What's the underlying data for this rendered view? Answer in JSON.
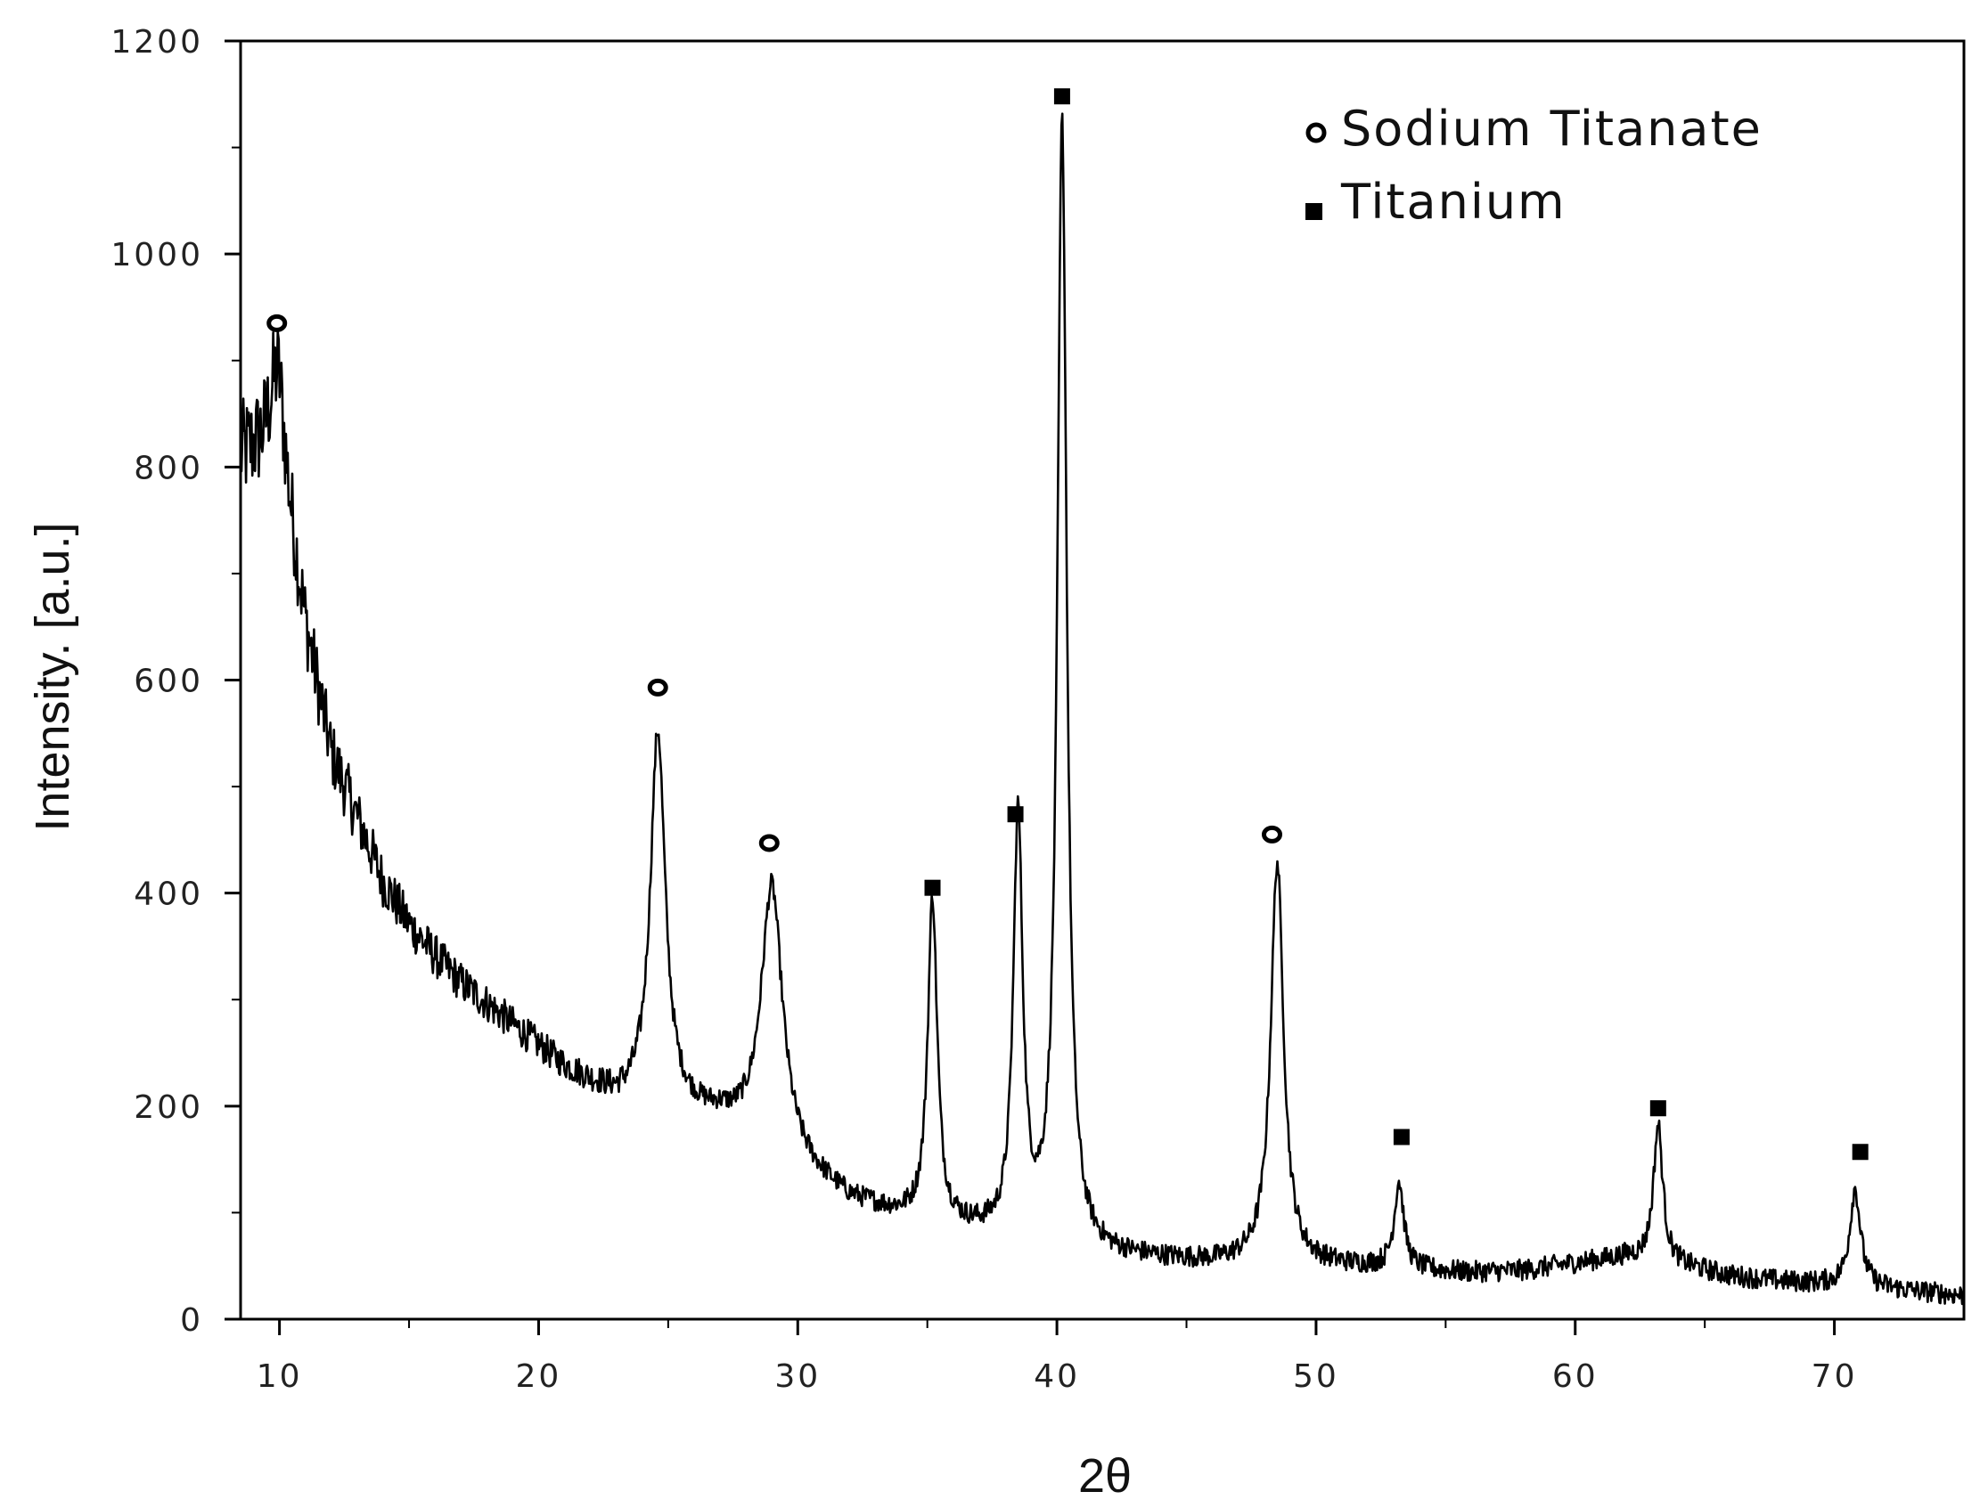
{
  "chart_data": {
    "type": "line",
    "xlabel": "2θ",
    "ylabel": "Intensity. [a.u.]",
    "xlim": [
      8.5,
      75
    ],
    "ylim": [
      0,
      1200
    ],
    "x_ticks": [
      10,
      20,
      30,
      40,
      50,
      60,
      70
    ],
    "y_ticks": [
      0,
      200,
      400,
      600,
      800,
      1000,
      1200
    ],
    "grid": false,
    "legend_position": "top-right",
    "legend": [
      {
        "label": "Sodium Titanate",
        "marker": "circle-open"
      },
      {
        "label": "Titanium",
        "marker": "square-filled"
      }
    ],
    "series": [
      {
        "color": "#000000",
        "baseline": {
          "x": [
            8.5,
            10,
            11,
            12,
            13,
            14,
            15,
            16,
            17,
            18,
            19,
            20,
            21,
            22,
            23,
            25,
            27,
            30,
            32,
            34,
            36,
            38,
            40,
            42,
            44,
            46,
            48,
            50,
            52,
            54,
            56,
            58,
            60,
            62,
            64,
            66,
            68,
            70,
            72,
            75
          ],
          "y": [
            810,
            820,
            650,
            530,
            470,
            410,
            370,
            340,
            315,
            295,
            275,
            255,
            235,
            220,
            205,
            195,
            185,
            140,
            110,
            95,
            85,
            75,
            65,
            58,
            55,
            52,
            52,
            50,
            48,
            45,
            43,
            45,
            52,
            58,
            50,
            40,
            35,
            32,
            28,
            22
          ]
        },
        "peaks": [
          {
            "x": 9.9,
            "y": 890,
            "width": 0.35
          },
          {
            "x": 24.6,
            "y": 550,
            "width": 0.35
          },
          {
            "x": 29.0,
            "y": 405,
            "width": 0.5
          },
          {
            "x": 35.2,
            "y": 392,
            "width": 0.22
          },
          {
            "x": 38.5,
            "y": 465,
            "width": 0.22
          },
          {
            "x": 40.2,
            "y": 1120,
            "width": 0.22
          },
          {
            "x": 48.5,
            "y": 428,
            "width": 0.3
          },
          {
            "x": 53.2,
            "y": 128,
            "width": 0.22
          },
          {
            "x": 63.2,
            "y": 182,
            "width": 0.22
          },
          {
            "x": 70.8,
            "y": 122,
            "width": 0.25
          }
        ]
      }
    ],
    "markers": [
      {
        "x": 9.9,
        "y": 935,
        "phase": "Sodium Titanate"
      },
      {
        "x": 24.6,
        "y": 593,
        "phase": "Sodium Titanate"
      },
      {
        "x": 28.9,
        "y": 447,
        "phase": "Sodium Titanate"
      },
      {
        "x": 48.3,
        "y": 455,
        "phase": "Sodium Titanate"
      },
      {
        "x": 35.2,
        "y": 405,
        "phase": "Titanium"
      },
      {
        "x": 38.4,
        "y": 474,
        "phase": "Titanium"
      },
      {
        "x": 40.2,
        "y": 1148,
        "phase": "Titanium"
      },
      {
        "x": 53.3,
        "y": 171,
        "phase": "Titanium"
      },
      {
        "x": 63.2,
        "y": 198,
        "phase": "Titanium"
      },
      {
        "x": 71.0,
        "y": 157,
        "phase": "Titanium"
      }
    ]
  }
}
